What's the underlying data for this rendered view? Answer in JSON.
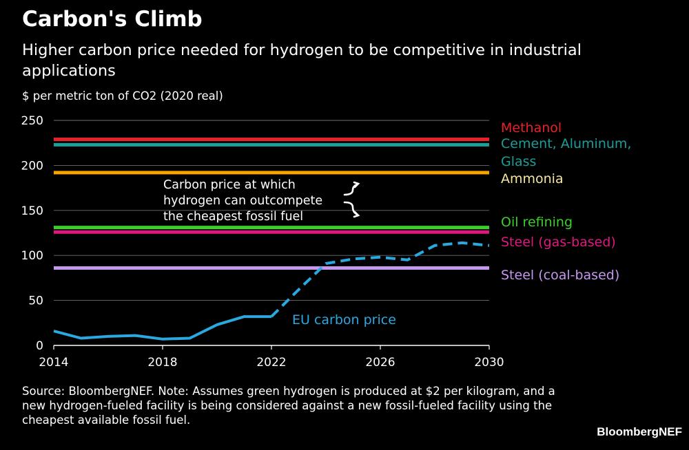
{
  "title": "Carbon's Climb",
  "subtitle": "Higher carbon price needed for hydrogen to be competitive in industrial applications",
  "unit_label": "$ per metric ton of CO2 (2020 real)",
  "source_note": "Source: BloombergNEF. Note: Assumes green hydrogen is produced at $2 per kilogram, and a new hydrogen-fueled facility is being considered against a new fossil-fueled facility using the cheapest available fossil fuel.",
  "brand": "BloombergNEF",
  "chart_data": {
    "type": "line",
    "xlim": [
      2014,
      2030
    ],
    "ylim": [
      0,
      250
    ],
    "x_ticks": [
      2014,
      2018,
      2022,
      2026,
      2030
    ],
    "y_ticks": [
      0,
      50,
      100,
      150,
      200,
      250
    ],
    "series": [
      {
        "name": "EU carbon price",
        "color": "#29a9e0",
        "label": "EU carbon price",
        "historical": [
          [
            2014,
            16
          ],
          [
            2015,
            8
          ],
          [
            2016,
            10
          ],
          [
            2017,
            11
          ],
          [
            2018,
            7
          ],
          [
            2019,
            8
          ],
          [
            2020,
            23
          ],
          [
            2021,
            32
          ],
          [
            2022,
            32
          ]
        ],
        "forecast": [
          [
            2022,
            32
          ],
          [
            2023,
            62
          ],
          [
            2024,
            91
          ],
          [
            2025,
            96
          ],
          [
            2026,
            98
          ],
          [
            2027,
            95
          ],
          [
            2028,
            111
          ],
          [
            2029,
            114
          ],
          [
            2030,
            111
          ]
        ]
      }
    ],
    "thresholds": [
      {
        "name": "Methanol",
        "value": 229,
        "color": "#e8202a"
      },
      {
        "name": "Cement, Aluminum, Glass",
        "value": 223,
        "color": "#1c9e9a"
      },
      {
        "name": "Ammonia",
        "value": 192,
        "color": "#f5a500"
      },
      {
        "name": "Oil refining",
        "value": 131,
        "color": "#3ccf2c"
      },
      {
        "name": "Steel (gas-based)",
        "value": 126,
        "color": "#e0177f"
      },
      {
        "name": "Steel (coal-based)",
        "value": 86,
        "color": "#c597f0"
      }
    ],
    "threshold_labels": {
      "methanol": "Methanol",
      "cement_line1": "Cement, Aluminum,",
      "cement_line2": "Glass",
      "ammonia": "Ammonia",
      "oil": "Oil refining",
      "steel_gas": "Steel (gas-based)",
      "steel_coal": "Steel (coal-based)"
    },
    "label_colors": {
      "methanol": "#e8202a",
      "cement": "#1c9e9a",
      "ammonia": "#f5e6a0",
      "oil": "#3ccf2c",
      "steel_gas": "#e0177f",
      "steel_coal": "#c597f0"
    },
    "annotation": {
      "line1": "Carbon price at which",
      "line2": "hydrogen can outcompete",
      "line3": "the cheapest fossil fuel"
    }
  }
}
